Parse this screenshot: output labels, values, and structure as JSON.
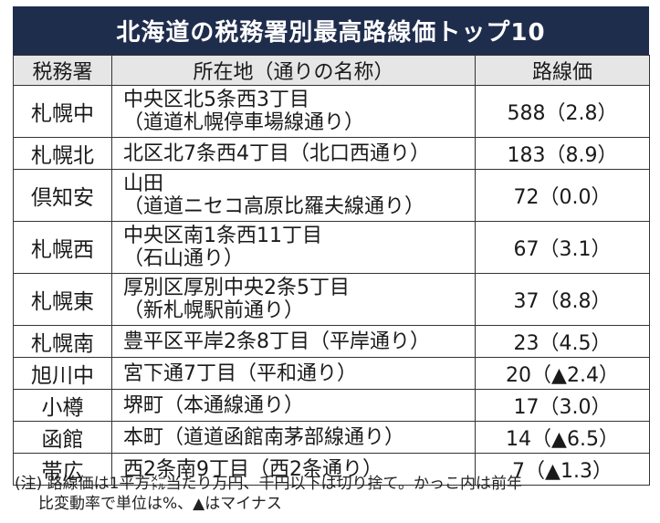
{
  "title": "北海道の税務署別最高路線価トップ10",
  "headers": {
    "office": "税務署",
    "location": "所在地（通りの名称）",
    "price": "路線価"
  },
  "rows": [
    {
      "office": "札幌中",
      "loc1": "中央区北5条西3丁目",
      "loc2": "（道道札幌停車場線通り）",
      "price": "588（2.8）"
    },
    {
      "office": "札幌北",
      "loc1": "北区北7条西4丁目（北口西通り）",
      "loc2": "",
      "price": "183（8.9）"
    },
    {
      "office": "倶知安",
      "loc1": "山田",
      "loc2": "（道道ニセコ高原比羅夫線通り）",
      "price": "72（0.0）"
    },
    {
      "office": "札幌西",
      "loc1": "中央区南1条西11丁目",
      "loc2": "（石山通り）",
      "price": "67（3.1）"
    },
    {
      "office": "札幌東",
      "loc1": "厚別区厚別中央2条5丁目",
      "loc2": "（新札幌駅前通り）",
      "price": "37（8.8）"
    },
    {
      "office": "札幌南",
      "loc1": "豊平区平岸2条8丁目（平岸通り）",
      "loc2": "",
      "price": "23（4.5）"
    },
    {
      "office": "旭川中",
      "loc1": "宮下通7丁目（平和通り）",
      "loc2": "",
      "price": "20（▲2.4）"
    },
    {
      "office": "小樽",
      "loc1": "堺町（本通線通り）",
      "loc2": "",
      "price": "17（3.0）"
    },
    {
      "office": "函館",
      "loc1": "本町（道道函館南茅部線通り）",
      "loc2": "",
      "price": "14（▲6.5）"
    },
    {
      "office": "帯広",
      "loc1": "西2条南9丁目（西2条通り）",
      "loc2": "",
      "price": "7（▲1.3）"
    }
  ],
  "footnote": {
    "line1": "(注) 路線価は1平方㍍当たり万円、千円以下は切り捨て。かっこ内は前年",
    "line2": "比変動率で単位は%、▲はマイナス"
  }
}
